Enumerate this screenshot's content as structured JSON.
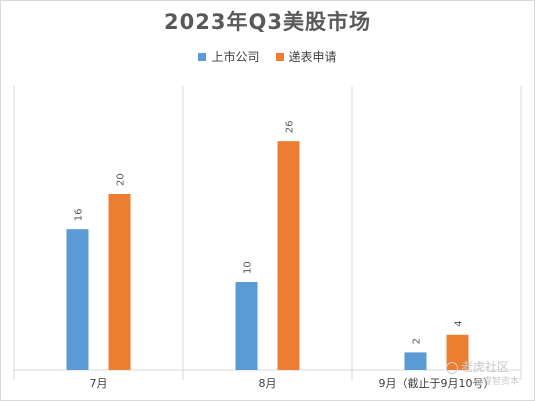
{
  "chart_data": {
    "type": "bar",
    "title": "2023年Q3美股市场",
    "categories": [
      "7月",
      "8月",
      "9月（截止于9月10号）"
    ],
    "series": [
      {
        "name": "上市公司",
        "color": "#5b9bd5",
        "values": [
          16,
          10,
          2
        ]
      },
      {
        "name": "递表申请",
        "color": "#ed7d31",
        "values": [
          20,
          26,
          4
        ]
      }
    ],
    "ylim": [
      0,
      30
    ],
    "grid": false,
    "category_dividers": true,
    "legend_position": "top-center",
    "data_labels": "rotated-vertical"
  },
  "watermark": {
    "brand": "老虎社区",
    "sub": "@睿智资本"
  }
}
